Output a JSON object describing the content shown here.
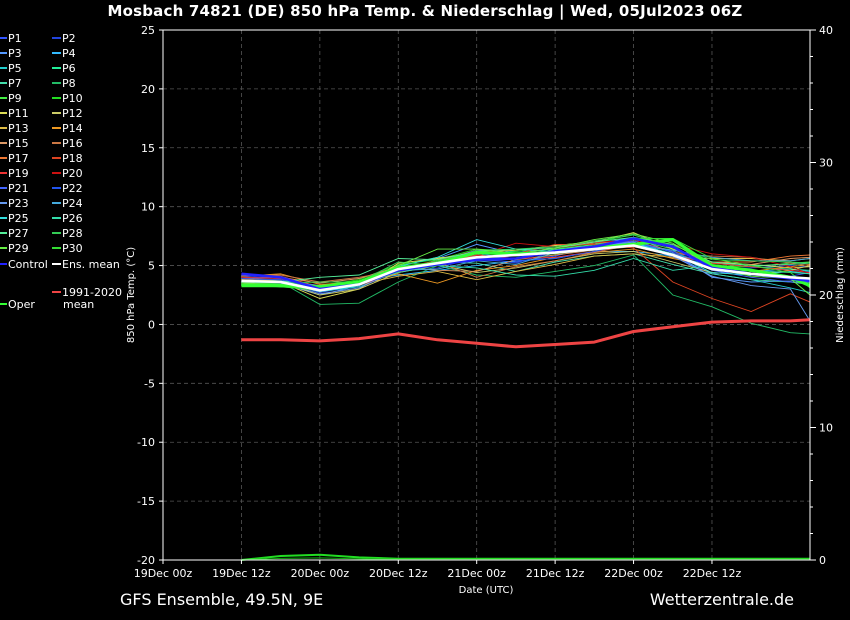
{
  "header": {
    "title": "Mosbach 74821 (DE)  850 hPa Temp. & Niederschlag | Wed, 05Jul2023 06Z"
  },
  "footer": {
    "left": "GFS Ensemble, 49.5N, 9E",
    "right": "Wetterzentrale.de"
  },
  "legend": {
    "members": [
      {
        "label": "P1",
        "color": "#3355ff"
      },
      {
        "label": "P2",
        "color": "#2244dd"
      },
      {
        "label": "P3",
        "color": "#5599ff"
      },
      {
        "label": "P4",
        "color": "#33bbff"
      },
      {
        "label": "P5",
        "color": "#22cccc"
      },
      {
        "label": "P6",
        "color": "#22ee99"
      },
      {
        "label": "P7",
        "color": "#44ddaa"
      },
      {
        "label": "P8",
        "color": "#22bb66"
      },
      {
        "label": "P9",
        "color": "#44ee44"
      },
      {
        "label": "P10",
        "color": "#22dd22"
      },
      {
        "label": "P11",
        "color": "#dddd55"
      },
      {
        "label": "P12",
        "color": "#cccc66"
      },
      {
        "label": "P13",
        "color": "#ddbb44"
      },
      {
        "label": "P14",
        "color": "#ee9922"
      },
      {
        "label": "P15",
        "color": "#dd9966"
      },
      {
        "label": "P16",
        "color": "#cc7744"
      },
      {
        "label": "P17",
        "color": "#ee7733"
      },
      {
        "label": "P18",
        "color": "#dd4422"
      },
      {
        "label": "P19",
        "color": "#ee3333"
      },
      {
        "label": "P20",
        "color": "#cc1111"
      },
      {
        "label": "P21",
        "color": "#4466ff"
      },
      {
        "label": "P22",
        "color": "#2255ee"
      },
      {
        "label": "P23",
        "color": "#6699ee"
      },
      {
        "label": "P24",
        "color": "#44aadd"
      },
      {
        "label": "P25",
        "color": "#33dddd"
      },
      {
        "label": "P26",
        "color": "#33ddaa"
      },
      {
        "label": "P27",
        "color": "#55ee99"
      },
      {
        "label": "P28",
        "color": "#33cc55"
      },
      {
        "label": "P29",
        "color": "#66ee44"
      },
      {
        "label": "P30",
        "color": "#33dd33"
      }
    ],
    "control": {
      "label": "Control",
      "color": "#2222ff"
    },
    "ens_mean": {
      "label": "Ens. mean",
      "color": "#ffffff"
    },
    "climate": {
      "label_line1": "1991-2020",
      "label_line2": "mean",
      "color": "#ee4444"
    },
    "oper": {
      "label": "Oper",
      "color": "#33ff33"
    }
  },
  "chart_data": {
    "type": "line",
    "title": "Mosbach 74821 (DE)  850 hPa Temp. & Niederschlag | Wed, 05Jul2023 06Z",
    "xlabel": "Date (UTC)",
    "ylabel": "850 hPa Temp. (°C)",
    "y2label": "Niederschlag (mm)",
    "ylim": [
      -20,
      25
    ],
    "y2lim": [
      0,
      40
    ],
    "yticks": [
      "25",
      "20",
      "15",
      "10",
      "5",
      "0",
      "-5",
      "-10",
      "-15",
      "-20"
    ],
    "y2ticks": [
      "40",
      "30",
      "20",
      "10",
      "0"
    ],
    "xticks": [
      "19Dec 00z",
      "19Dec 12z",
      "20Dec 00z",
      "20Dec 12z",
      "21Dec 00z",
      "21Dec 12z",
      "22Dec 00z",
      "22Dec 12z"
    ],
    "xrange_hours": [
      0,
      99
    ],
    "grid": true,
    "x_hours": [
      12,
      18,
      24,
      30,
      36,
      42,
      48,
      54,
      60,
      66,
      72,
      78,
      84,
      90,
      96,
      99
    ],
    "series": [
      {
        "name": "Control",
        "values": [
          4.3,
          4.0,
          3.0,
          3.4,
          4.6,
          5.1,
          5.5,
          5.6,
          6.2,
          6.6,
          7.3,
          6.6,
          4.8,
          4.3,
          3.9,
          3.7
        ]
      },
      {
        "name": "Ens. mean",
        "values": [
          3.7,
          3.6,
          2.9,
          3.4,
          4.7,
          5.2,
          5.7,
          5.9,
          6.1,
          6.4,
          6.7,
          5.9,
          4.7,
          4.3,
          4.0,
          3.9
        ]
      },
      {
        "name": "Oper",
        "values": [
          3.3,
          3.3,
          3.2,
          3.6,
          4.8,
          5.2,
          6.1,
          6.0,
          6.1,
          6.5,
          6.8,
          7.2,
          5.0,
          4.6,
          4.0,
          3.3
        ]
      },
      {
        "name": "1991-2020 mean",
        "values": [
          -1.3,
          -1.3,
          -1.4,
          -1.2,
          -0.8,
          -1.3,
          -1.6,
          -1.9,
          -1.7,
          -1.5,
          -0.6,
          -0.2,
          0.2,
          0.3,
          0.3,
          0.4
        ]
      },
      {
        "name": "P1",
        "values": [
          3.9,
          3.7,
          2.7,
          3.3,
          4.8,
          5.0,
          5.5,
          5.3,
          5.8,
          6.6,
          7.0,
          5.8,
          4.3,
          4.6,
          4.1,
          4.4
        ]
      },
      {
        "name": "P2",
        "values": [
          4.1,
          3.9,
          3.1,
          3.5,
          4.5,
          4.8,
          5.7,
          5.2,
          6.2,
          6.8,
          7.0,
          5.7,
          4.8,
          4.8,
          5.0,
          4.9
        ]
      },
      {
        "name": "P3",
        "values": [
          3.6,
          3.5,
          2.5,
          3.3,
          5.0,
          5.6,
          6.8,
          6.0,
          6.3,
          6.8,
          7.4,
          6.1,
          4.0,
          3.6,
          3.7,
          3.9
        ]
      },
      {
        "name": "P4",
        "values": [
          3.6,
          3.4,
          3.1,
          3.7,
          4.2,
          4.6,
          5.0,
          5.4,
          5.6,
          6.2,
          6.2,
          5.8,
          5.0,
          4.5,
          4.7,
          4.5
        ]
      },
      {
        "name": "P5",
        "values": [
          3.7,
          3.8,
          2.8,
          3.2,
          4.5,
          5.1,
          5.9,
          6.2,
          6.4,
          6.5,
          6.9,
          6.3,
          4.3,
          3.8,
          3.1,
          2.7
        ]
      },
      {
        "name": "P6",
        "values": [
          3.4,
          3.2,
          3.0,
          3.5,
          4.5,
          5.5,
          5.8,
          5.6,
          6.2,
          6.6,
          6.9,
          6.0,
          5.2,
          4.9,
          4.7,
          4.6
        ]
      },
      {
        "name": "P7",
        "values": [
          3.8,
          3.6,
          3.2,
          3.6,
          4.6,
          5.3,
          5.2,
          4.5,
          5.3,
          5.8,
          6.0,
          5.1,
          4.3,
          3.8,
          3.6,
          3.4
        ]
      },
      {
        "name": "P8",
        "values": [
          3.6,
          3.6,
          1.7,
          1.8,
          3.6,
          5.0,
          4.2,
          4.0,
          4.5,
          5.0,
          5.9,
          2.5,
          1.5,
          0.1,
          -0.7,
          -0.8
        ]
      },
      {
        "name": "P9",
        "values": [
          3.5,
          3.2,
          3.1,
          3.7,
          5.0,
          5.7,
          5.6,
          5.6,
          6.4,
          6.8,
          7.2,
          6.4,
          5.0,
          4.9,
          5.2,
          5.3
        ]
      },
      {
        "name": "P10",
        "values": [
          3.4,
          3.5,
          3.3,
          3.8,
          5.1,
          5.5,
          6.4,
          6.2,
          6.7,
          7.0,
          7.6,
          6.5,
          4.9,
          4.6,
          4.0,
          3.5
        ]
      },
      {
        "name": "P11",
        "values": [
          3.5,
          3.6,
          2.2,
          3.0,
          5.2,
          5.6,
          6.1,
          6.3,
          6.7,
          7.0,
          7.8,
          6.4,
          5.3,
          5.1,
          4.8,
          4.9
        ]
      },
      {
        "name": "P12",
        "values": [
          3.8,
          3.6,
          2.5,
          3.0,
          4.4,
          5.1,
          4.4,
          4.8,
          5.4,
          6.0,
          6.2,
          5.3,
          4.4,
          4.2,
          4.6,
          5.0
        ]
      },
      {
        "name": "P13",
        "values": [
          3.8,
          3.7,
          2.8,
          3.4,
          4.1,
          4.5,
          3.8,
          4.5,
          5.1,
          5.8,
          6.0,
          5.7,
          5.6,
          5.6,
          5.4,
          5.6
        ]
      },
      {
        "name": "P14",
        "values": [
          4.1,
          4.3,
          3.4,
          3.6,
          4.3,
          3.5,
          4.6,
          5.0,
          5.7,
          6.1,
          6.4,
          5.6,
          5.0,
          4.5,
          4.9,
          5.1
        ]
      },
      {
        "name": "P15",
        "values": [
          3.9,
          4.0,
          3.5,
          3.9,
          4.9,
          4.6,
          4.5,
          5.5,
          5.9,
          6.3,
          6.6,
          5.9,
          5.2,
          5.1,
          5.6,
          5.7
        ]
      },
      {
        "name": "P16",
        "values": [
          4.2,
          4.2,
          3.6,
          4.0,
          4.6,
          5.3,
          4.0,
          4.9,
          5.4,
          6.1,
          6.8,
          6.0,
          5.8,
          5.7,
          5.2,
          5.0
        ]
      },
      {
        "name": "P17",
        "values": [
          4.3,
          4.1,
          3.2,
          3.5,
          4.4,
          5.0,
          5.6,
          6.0,
          6.5,
          6.9,
          7.1,
          6.2,
          5.3,
          5.3,
          5.8,
          5.9
        ]
      },
      {
        "name": "P18",
        "values": [
          3.9,
          3.8,
          3.3,
          3.6,
          4.8,
          5.4,
          6.3,
          6.0,
          6.8,
          6.8,
          6.5,
          3.6,
          2.2,
          1.1,
          2.6,
          1.9
        ]
      },
      {
        "name": "P19",
        "values": [
          4.0,
          3.9,
          3.0,
          3.4,
          4.7,
          5.2,
          5.9,
          5.6,
          5.7,
          6.2,
          6.8,
          5.8,
          5.2,
          4.9,
          4.6,
          4.4
        ]
      },
      {
        "name": "P20",
        "values": [
          3.7,
          3.5,
          2.9,
          3.3,
          4.5,
          5.0,
          5.8,
          6.9,
          6.6,
          7.0,
          7.1,
          6.8,
          6.0,
          5.7,
          4.9,
          4.3
        ]
      },
      {
        "name": "P21",
        "values": [
          4.2,
          4.0,
          3.0,
          3.4,
          4.6,
          5.1,
          5.7,
          5.9,
          6.3,
          6.6,
          7.1,
          6.1,
          4.6,
          4.0,
          3.6,
          3.6
        ]
      },
      {
        "name": "P22",
        "values": [
          3.9,
          3.8,
          3.2,
          3.6,
          4.7,
          5.3,
          6.1,
          5.4,
          5.6,
          6.2,
          6.9,
          6.2,
          4.9,
          4.2,
          4.1,
          3.9
        ]
      },
      {
        "name": "P23",
        "values": [
          3.7,
          3.6,
          2.6,
          3.1,
          4.6,
          5.3,
          6.3,
          5.8,
          6.1,
          6.6,
          7.0,
          5.8,
          4.1,
          3.3,
          3.0,
          0.3
        ]
      },
      {
        "name": "P24",
        "values": [
          3.6,
          3.7,
          3.3,
          3.6,
          4.6,
          4.7,
          5.4,
          5.1,
          6.1,
          6.3,
          6.7,
          6.3,
          5.7,
          5.4,
          5.4,
          5.6
        ]
      },
      {
        "name": "P25",
        "values": [
          3.6,
          3.5,
          2.8,
          3.3,
          4.9,
          5.7,
          7.2,
          6.4,
          6.2,
          6.4,
          6.9,
          6.0,
          4.4,
          4.2,
          4.5,
          4.3
        ]
      },
      {
        "name": "P26",
        "values": [
          3.4,
          3.3,
          3.0,
          3.5,
          4.4,
          5.0,
          4.8,
          4.2,
          4.1,
          4.6,
          5.6,
          4.6,
          5.0,
          4.6,
          4.4,
          4.3
        ]
      },
      {
        "name": "P27",
        "values": [
          3.6,
          3.6,
          4.0,
          4.2,
          5.6,
          5.5,
          6.2,
          6.4,
          6.5,
          7.0,
          7.4,
          6.8,
          5.3,
          5.0,
          5.1,
          5.2
        ]
      },
      {
        "name": "P28",
        "values": [
          3.5,
          3.5,
          3.6,
          3.6,
          5.3,
          5.0,
          6.3,
          6.4,
          6.6,
          7.1,
          7.6,
          6.7,
          5.5,
          5.4,
          5.3,
          5.2
        ]
      },
      {
        "name": "P29",
        "values": [
          3.5,
          3.4,
          2.9,
          3.5,
          5.0,
          6.4,
          6.4,
          6.0,
          6.5,
          7.2,
          7.7,
          6.9,
          4.9,
          4.1,
          3.9,
          2.5
        ]
      },
      {
        "name": "P30",
        "values": [
          3.3,
          3.2,
          2.9,
          3.4,
          4.5,
          5.4,
          6.1,
          5.8,
          6.2,
          6.7,
          7.3,
          7.3,
          5.6,
          5.0,
          4.4,
          3.1
        ]
      }
    ],
    "precipitation": {
      "name": "Niederschlag",
      "x_hours": [
        12,
        18,
        24,
        30,
        36,
        42,
        48,
        54,
        60,
        66,
        72,
        78,
        84,
        90,
        96,
        99
      ],
      "values": [
        0.0,
        0.3,
        0.4,
        0.2,
        0.1,
        0.1,
        0.1,
        0.1,
        0.1,
        0.1,
        0.1,
        0.1,
        0.1,
        0.1,
        0.1,
        0.1
      ]
    }
  }
}
